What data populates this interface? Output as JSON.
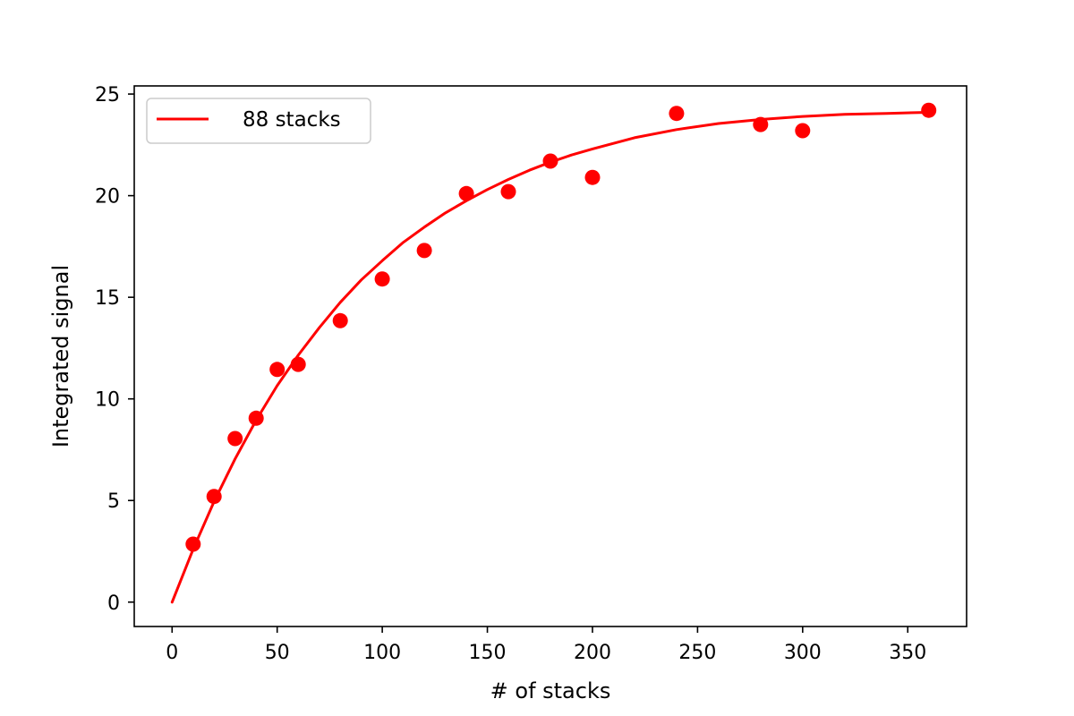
{
  "chart_data": {
    "type": "scatter",
    "title": "",
    "xlabel": "# of stacks",
    "ylabel": "Integrated signal",
    "xlim": [
      -18,
      378
    ],
    "ylim": [
      -1.2,
      25.4
    ],
    "xticks": [
      0,
      50,
      100,
      150,
      200,
      250,
      300,
      350
    ],
    "yticks": [
      0,
      5,
      10,
      15,
      20,
      25
    ],
    "grid": false,
    "legend_position": "top-left",
    "color": "#ff0000",
    "series": [
      {
        "type": "scatter",
        "x": [
          10,
          20,
          30,
          40,
          50,
          60,
          80,
          100,
          120,
          140,
          160,
          180,
          200,
          240,
          280,
          300,
          360
        ],
        "y": [
          2.85,
          5.2,
          8.05,
          9.05,
          11.45,
          11.7,
          13.85,
          15.9,
          17.3,
          20.1,
          20.2,
          21.7,
          20.9,
          24.05,
          23.5,
          23.2,
          24.2
        ]
      },
      {
        "name": "88 stacks",
        "type": "line",
        "x": [
          0,
          10,
          20,
          30,
          40,
          50,
          60,
          70,
          80,
          90,
          100,
          110,
          120,
          130,
          140,
          150,
          160,
          170,
          180,
          190,
          200,
          220,
          240,
          260,
          280,
          300,
          320,
          340,
          360
        ],
        "y": [
          0,
          2.6,
          4.95,
          7.05,
          8.95,
          10.65,
          12.15,
          13.5,
          14.75,
          15.85,
          16.8,
          17.7,
          18.45,
          19.15,
          19.75,
          20.3,
          20.8,
          21.25,
          21.65,
          22.0,
          22.3,
          22.85,
          23.25,
          23.55,
          23.75,
          23.9,
          24.0,
          24.05,
          24.1
        ]
      }
    ]
  }
}
